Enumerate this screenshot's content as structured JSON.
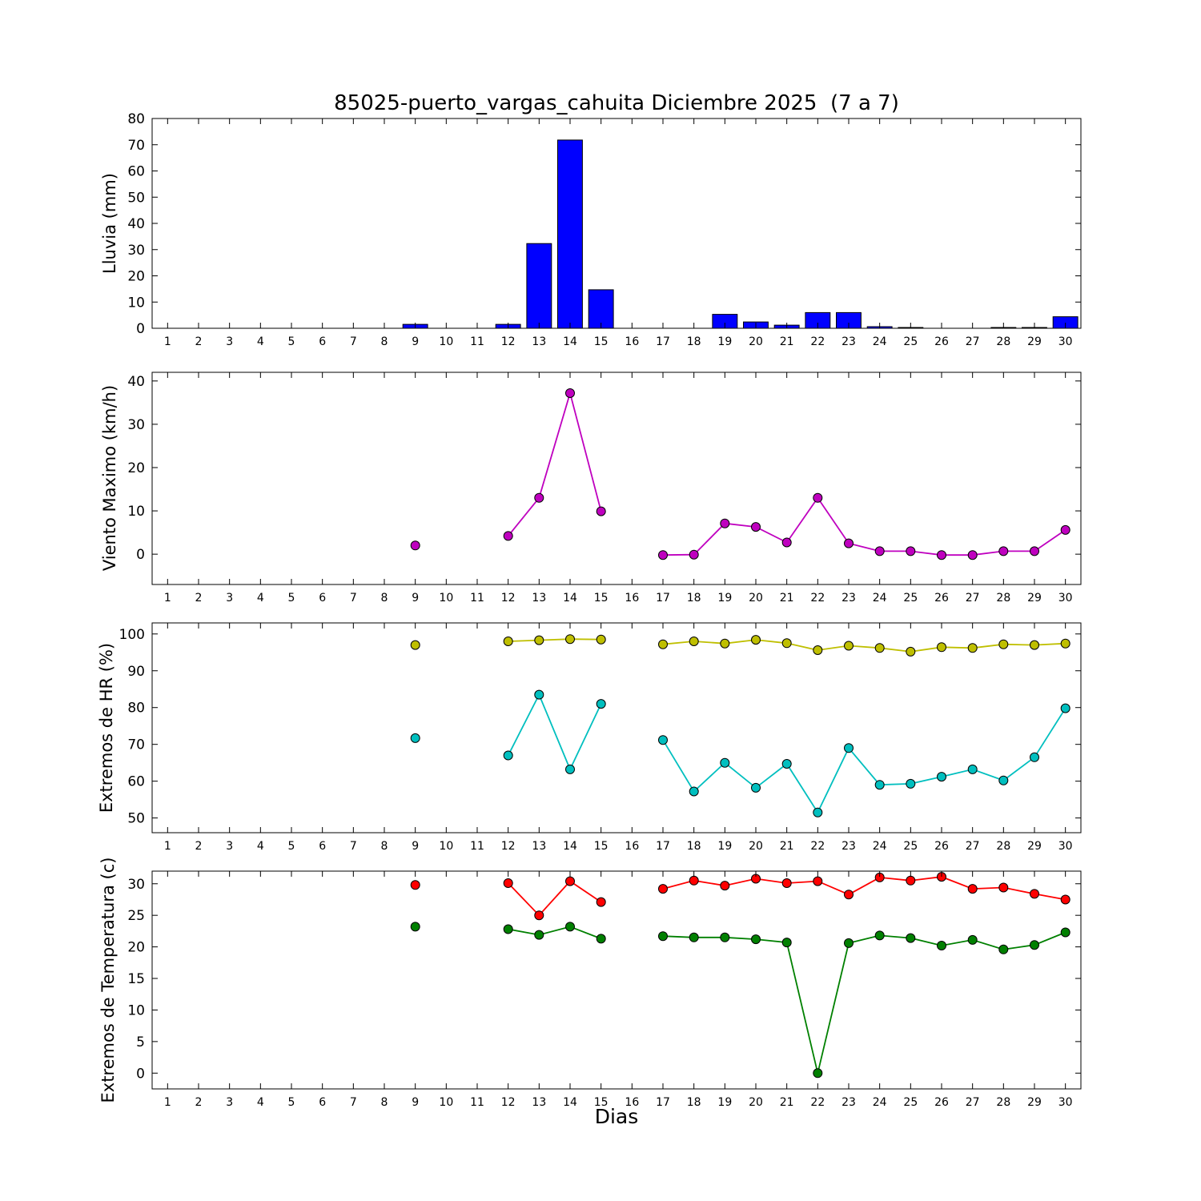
{
  "figure": {
    "title": "85025-puerto_vargas_cahuita Diciembre 2025  (7 a 7)",
    "xlabel": "Dias",
    "background": "#ffffff"
  },
  "days": [
    1,
    2,
    3,
    4,
    5,
    6,
    7,
    8,
    9,
    10,
    11,
    12,
    13,
    14,
    15,
    16,
    17,
    18,
    19,
    20,
    21,
    22,
    23,
    24,
    25,
    26,
    27,
    28,
    29,
    30
  ],
  "chart_data": "see charts",
  "charts": [
    {
      "id": "lluvia",
      "type": "bar",
      "ylabel": "Lluvia (mm)",
      "ylim": [
        0,
        80
      ],
      "yticks": [
        0,
        10,
        20,
        30,
        40,
        50,
        60,
        70,
        80
      ],
      "grid": false,
      "series": [
        {
          "name": "lluvia",
          "color": "#0000ff",
          "values": [
            0,
            0,
            0,
            0,
            0,
            0,
            0,
            0,
            1.5,
            0,
            0,
            1.5,
            32.3,
            71.8,
            14.7,
            0,
            0,
            0,
            5.3,
            2.4,
            1.2,
            6.0,
            6.0,
            0.6,
            0.3,
            0,
            0,
            0.3,
            0.3,
            4.4
          ]
        }
      ]
    },
    {
      "id": "viento",
      "type": "line",
      "ylabel": "Viento Maximo (km/h)",
      "ylim": [
        -7,
        42
      ],
      "yticks": [
        0,
        10,
        20,
        30,
        40
      ],
      "grid": false,
      "series": [
        {
          "name": "viento-maximo",
          "color": "#bf00bf",
          "values": [
            null,
            null,
            null,
            null,
            null,
            null,
            null,
            null,
            2.0,
            null,
            null,
            4.2,
            13.0,
            37.2,
            9.9,
            null,
            -0.2,
            -0.1,
            7.1,
            6.3,
            2.7,
            13.0,
            2.5,
            0.7,
            0.7,
            -0.2,
            -0.2,
            0.7,
            0.7,
            5.6
          ]
        }
      ]
    },
    {
      "id": "hr",
      "type": "line",
      "ylabel": "Extremos de HR (%)",
      "ylim": [
        46,
        103
      ],
      "yticks": [
        50,
        60,
        70,
        80,
        90,
        100
      ],
      "grid": false,
      "series": [
        {
          "name": "hr-max",
          "color": "#bfbf00",
          "values": [
            null,
            null,
            null,
            null,
            null,
            null,
            null,
            null,
            97.0,
            null,
            null,
            98.0,
            98.3,
            98.6,
            98.5,
            null,
            97.2,
            98.0,
            97.4,
            98.4,
            97.5,
            95.6,
            96.8,
            96.2,
            95.2,
            96.4,
            96.2,
            97.2,
            97.0,
            97.4
          ]
        },
        {
          "name": "hr-min",
          "color": "#00bfbf",
          "values": [
            null,
            null,
            null,
            null,
            null,
            null,
            null,
            null,
            71.7,
            null,
            null,
            67.0,
            83.5,
            63.2,
            81.0,
            null,
            71.2,
            57.2,
            65.0,
            58.2,
            64.7,
            51.5,
            69.0,
            59.0,
            59.3,
            61.2,
            63.2,
            60.2,
            66.5,
            79.8
          ]
        }
      ]
    },
    {
      "id": "temperatura",
      "type": "line",
      "ylabel": "Extremos de Temperatura (c)",
      "ylim": [
        -2.5,
        32
      ],
      "yticks": [
        0,
        5,
        10,
        15,
        20,
        25,
        30
      ],
      "grid": false,
      "series": [
        {
          "name": "temp-max",
          "color": "#ff0000",
          "values": [
            null,
            null,
            null,
            null,
            null,
            null,
            null,
            null,
            29.8,
            null,
            null,
            30.1,
            25.0,
            30.4,
            27.1,
            null,
            29.2,
            30.5,
            29.7,
            30.8,
            30.1,
            30.4,
            28.3,
            31.0,
            30.5,
            31.1,
            29.2,
            29.4,
            28.4,
            27.5
          ]
        },
        {
          "name": "temp-min",
          "color": "#008000",
          "values": [
            null,
            null,
            null,
            null,
            null,
            null,
            null,
            null,
            23.2,
            null,
            null,
            22.8,
            21.9,
            23.2,
            21.3,
            null,
            21.7,
            21.5,
            21.5,
            21.2,
            20.7,
            0.0,
            20.6,
            21.8,
            21.4,
            20.2,
            21.1,
            19.6,
            20.3,
            22.3
          ]
        }
      ]
    }
  ]
}
